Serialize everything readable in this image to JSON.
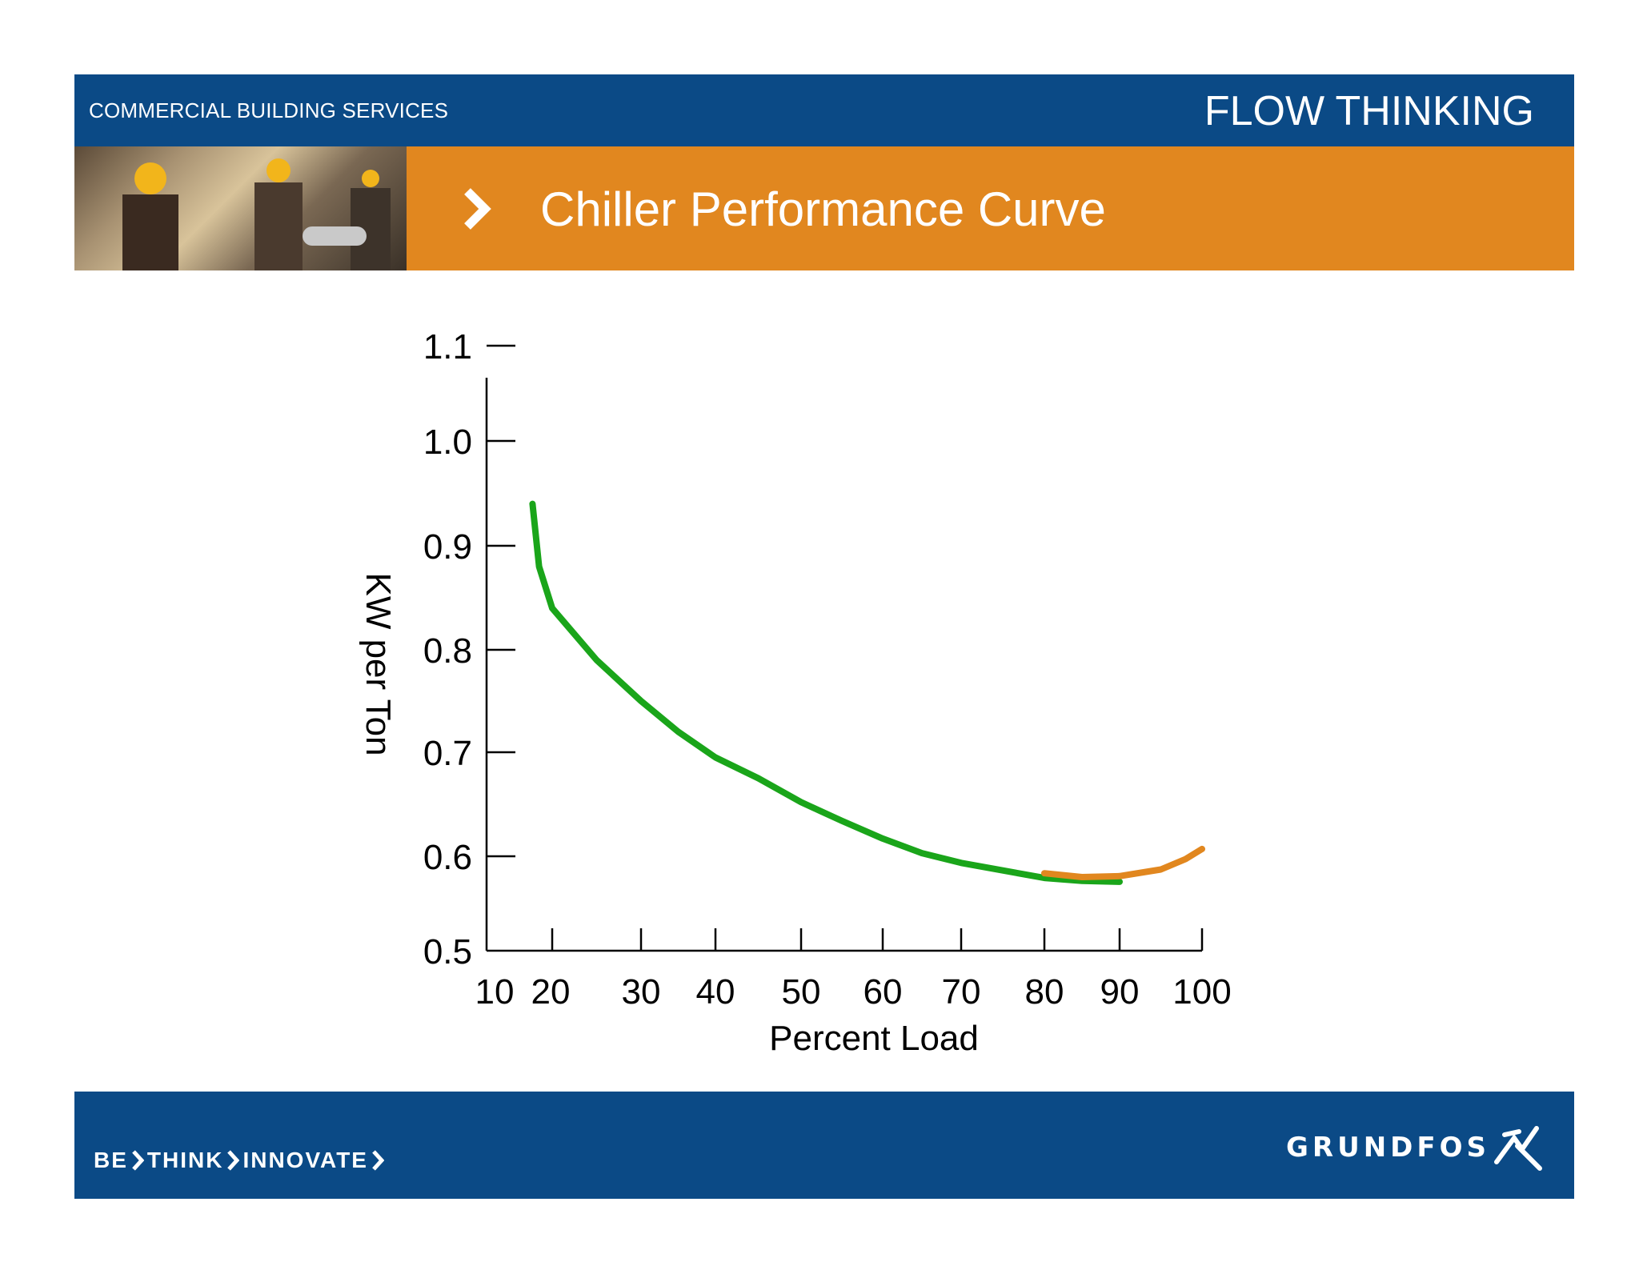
{
  "header": {
    "left_text": "COMMERCIAL BUILDING SERVICES",
    "right_text": "FLOW THINKING"
  },
  "title_bar": {
    "title": "Chiller Performance Curve",
    "photo_icon": "workers-photo"
  },
  "footer": {
    "slogan": [
      "BE",
      "THINK",
      "INNOVATE"
    ],
    "brand": "GRUNDFOS",
    "brand_icon": "grundfos-logo-icon"
  },
  "colors": {
    "header_blue": "#0b4a86",
    "title_orange": "#e1871f",
    "green_series": "#1aa51a",
    "orange_series": "#e1871f"
  },
  "chart_data": {
    "type": "line",
    "xlabel": "Percent Load",
    "ylabel": "KW per Ton",
    "x_ticks": [
      10,
      20,
      30,
      40,
      50,
      60,
      70,
      80,
      90,
      100
    ],
    "y_ticks": [
      "0.5",
      "0.6",
      "0.7",
      "0.8",
      "0.9",
      "1.0",
      "1.1"
    ],
    "ylim": [
      0.5,
      1.1
    ],
    "grid": false,
    "series": [
      {
        "color": "#1aa51a",
        "points": [
          [
            17,
            0.94
          ],
          [
            18,
            0.88
          ],
          [
            20,
            0.84
          ],
          [
            25,
            0.79
          ],
          [
            30,
            0.75
          ],
          [
            35,
            0.72
          ],
          [
            40,
            0.695
          ],
          [
            45,
            0.675
          ],
          [
            50,
            0.652
          ],
          [
            55,
            0.634
          ],
          [
            60,
            0.617
          ],
          [
            65,
            0.603
          ],
          [
            70,
            0.593
          ],
          [
            75,
            0.585
          ],
          [
            80,
            0.577
          ],
          [
            85,
            0.574
          ],
          [
            90,
            0.573
          ]
        ]
      },
      {
        "color": "#e1871f",
        "points": [
          [
            80,
            0.582
          ],
          [
            85,
            0.578
          ],
          [
            90,
            0.579
          ],
          [
            95,
            0.586
          ],
          [
            98,
            0.597
          ],
          [
            100,
            0.607
          ]
        ]
      }
    ]
  }
}
